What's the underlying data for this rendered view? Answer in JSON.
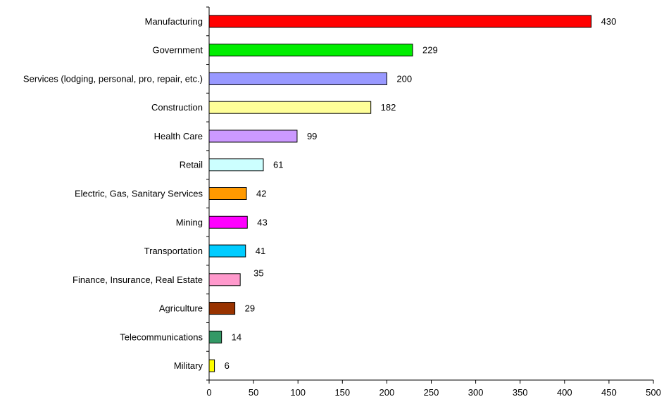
{
  "chart_data": {
    "type": "bar",
    "orientation": "horizontal",
    "title": "",
    "xlabel": "",
    "ylabel": "",
    "categories": [
      "Manufacturing",
      "Government",
      "Services (lodging, personal, pro, repair, etc.)",
      "Construction",
      "Health Care",
      "Retail",
      "Electric, Gas, Sanitary Services",
      "Mining",
      "Transportation",
      "Finance, Insurance, Real Estate",
      "Agriculture",
      "Telecommunications",
      "Military"
    ],
    "values": [
      430,
      229,
      200,
      182,
      99,
      61,
      42,
      43,
      41,
      35,
      29,
      14,
      6
    ],
    "colors": [
      "#ff0000",
      "#00ee00",
      "#9999ff",
      "#ffff99",
      "#cc99ff",
      "#ccffff",
      "#ff9900",
      "#ff00ff",
      "#00ccff",
      "#ff99cc",
      "#993300",
      "#339966",
      "#ffff00"
    ],
    "xlim": [
      0,
      500
    ],
    "xticks": [
      0,
      50,
      100,
      150,
      200,
      250,
      300,
      350,
      400,
      450,
      500
    ],
    "grid": false,
    "legend": "none"
  }
}
